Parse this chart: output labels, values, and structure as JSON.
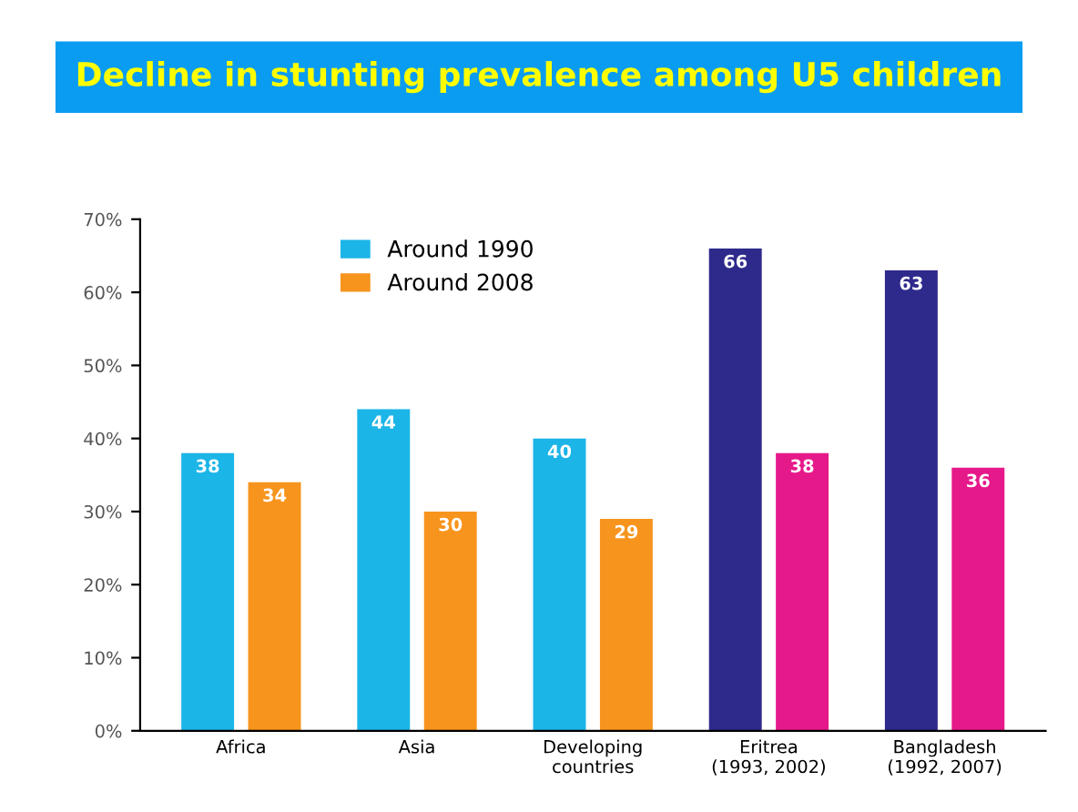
{
  "chart_data": {
    "type": "bar",
    "title": "Decline in stunting prevalence among U5 children",
    "categories": [
      "Africa",
      "Asia",
      "Developing\ncountries",
      "Eritrea\n(1993, 2002)",
      "Bangladesh\n(1992, 2007)"
    ],
    "series": [
      {
        "name": "Around 1990",
        "color": "#1bb5e8",
        "colors": [
          "#1bb5e8",
          "#1bb5e8",
          "#1bb5e8",
          "#2e2a8c",
          "#2e2a8c"
        ],
        "values": [
          38,
          44,
          40,
          66,
          63
        ]
      },
      {
        "name": "Around 2008",
        "color": "#f7941d",
        "colors": [
          "#f7941d",
          "#f7941d",
          "#f7941d",
          "#e6198a",
          "#e6198a"
        ],
        "values": [
          34,
          30,
          29,
          38,
          36
        ]
      }
    ],
    "ylim": [
      0,
      70
    ],
    "yticks": [
      {
        "value": 0,
        "label": "0%"
      },
      {
        "value": 10,
        "label": "10%"
      },
      {
        "value": 20,
        "label": "20%"
      },
      {
        "value": 30,
        "label": "30%"
      },
      {
        "value": 40,
        "label": "40%"
      },
      {
        "value": 50,
        "label": "50%"
      },
      {
        "value": 60,
        "label": "60%"
      },
      {
        "value": 70,
        "label": "70%"
      }
    ],
    "grid": false,
    "legend": "top left",
    "data_labels": true
  }
}
